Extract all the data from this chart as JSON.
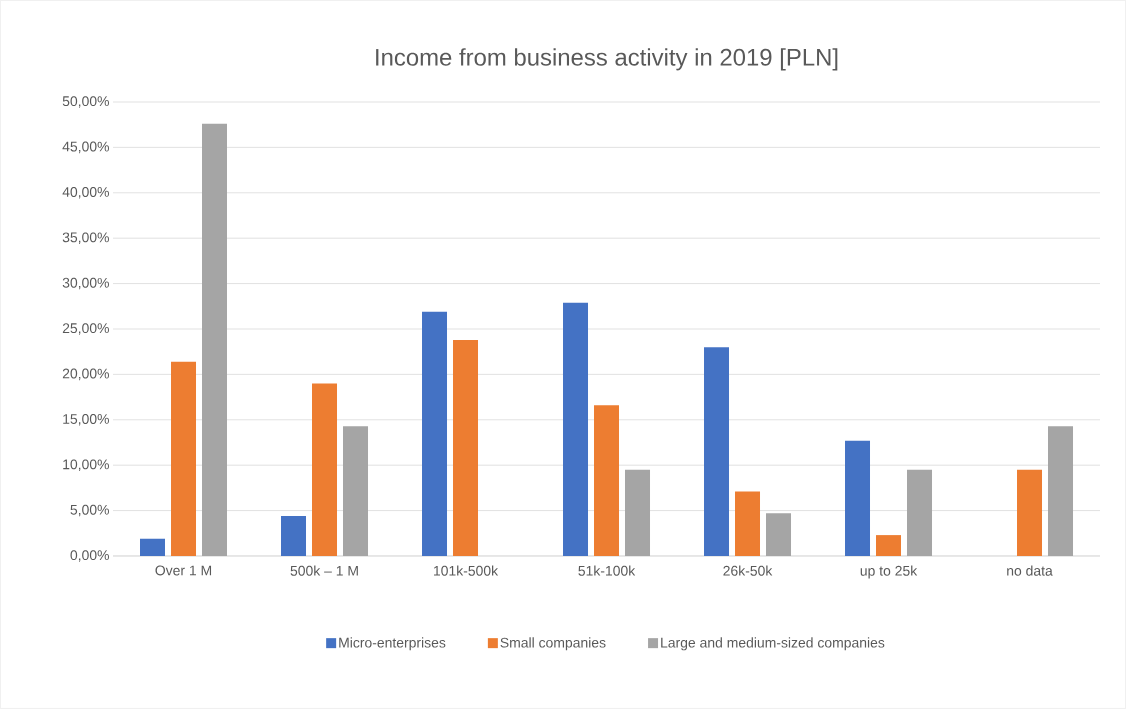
{
  "chart_data": {
    "type": "bar",
    "title": "Income from business activity in 2019 [PLN]",
    "categories": [
      "Over 1 M",
      "500k – 1 M",
      "101k-500k",
      "51k-100k",
      "26k-50k",
      "up to 25k",
      "no data"
    ],
    "series": [
      {
        "name": "Micro-enterprises",
        "color": "#4472c4",
        "values": [
          1.9,
          4.4,
          26.9,
          27.9,
          23.0,
          12.7,
          0
        ]
      },
      {
        "name": "Small companies",
        "color": "#ed7d31",
        "values": [
          21.4,
          19.0,
          23.8,
          16.6,
          7.1,
          2.3,
          9.5
        ]
      },
      {
        "name": "Large and medium-sized companies",
        "color": "#a5a5a5",
        "values": [
          47.6,
          14.3,
          0,
          9.5,
          4.7,
          9.5,
          14.3
        ]
      }
    ],
    "ylim": [
      0,
      50
    ],
    "yticks": [
      {
        "value": 0,
        "label": "0,00%"
      },
      {
        "value": 5,
        "label": "5,00%"
      },
      {
        "value": 10,
        "label": "10,00%"
      },
      {
        "value": 15,
        "label": "15,00%"
      },
      {
        "value": 20,
        "label": "20,00%"
      },
      {
        "value": 25,
        "label": "25,00%"
      },
      {
        "value": 30,
        "label": "30,00%"
      },
      {
        "value": 35,
        "label": "35,00%"
      },
      {
        "value": 40,
        "label": "40,00%"
      },
      {
        "value": 45,
        "label": "45,00%"
      },
      {
        "value": 50,
        "label": "50,00%"
      }
    ],
    "grid": "y",
    "legend": "bottom"
  }
}
